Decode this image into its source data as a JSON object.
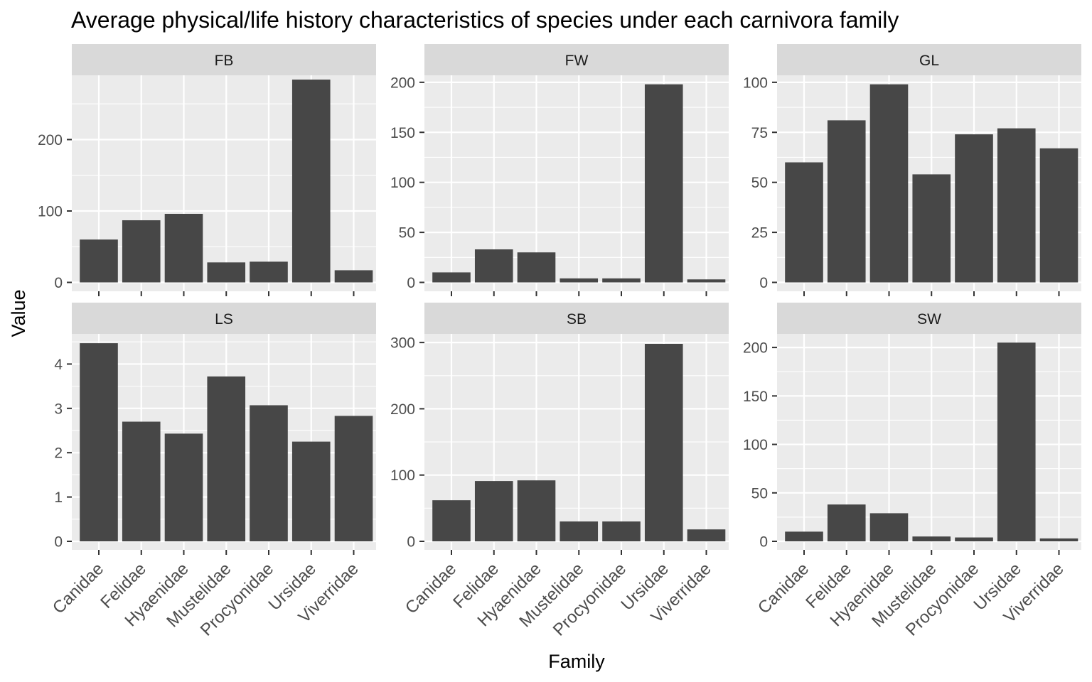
{
  "chart_data": {
    "type": "bar",
    "title": "Average physical/life history characteristics of species under each carnivora family",
    "xlabel": "Family",
    "ylabel": "Value",
    "categories": [
      "Canidae",
      "Felidae",
      "Hyaenidae",
      "Mustelidae",
      "Procyonidae",
      "Ursidae",
      "Viverridae"
    ],
    "colors": {
      "bar": "#474747",
      "panel": "#ebebeb",
      "strip": "#d9d9d9",
      "grid": "#ffffff"
    },
    "grid": true,
    "facets": [
      {
        "name": "FB",
        "ylim": [
          0,
          290
        ],
        "ticks": [
          0,
          100,
          200
        ],
        "values": [
          60,
          87,
          96,
          28,
          29,
          284,
          17
        ]
      },
      {
        "name": "FW",
        "ylim": [
          0,
          207
        ],
        "ticks": [
          0,
          50,
          100,
          150,
          200
        ],
        "values": [
          10,
          33,
          30,
          4,
          4,
          198,
          3
        ]
      },
      {
        "name": "GL",
        "ylim": [
          0,
          103.5
        ],
        "ticks": [
          0,
          25,
          50,
          75,
          100
        ],
        "values": [
          60,
          81,
          99,
          54,
          74,
          77,
          67
        ]
      },
      {
        "name": "LS",
        "ylim": [
          0,
          4.68
        ],
        "ticks": [
          0,
          1,
          2,
          3,
          4
        ],
        "values": [
          4.47,
          2.7,
          2.43,
          3.72,
          3.07,
          2.25,
          2.83
        ]
      },
      {
        "name": "SB",
        "ylim": [
          0,
          313
        ],
        "ticks": [
          0,
          100,
          200,
          300
        ],
        "values": [
          62,
          91,
          92,
          30,
          30,
          298,
          18
        ]
      },
      {
        "name": "SW",
        "ylim": [
          0,
          214
        ],
        "ticks": [
          0,
          50,
          100,
          150,
          200
        ],
        "values": [
          10,
          38,
          29,
          5,
          4,
          205,
          3
        ]
      }
    ]
  }
}
